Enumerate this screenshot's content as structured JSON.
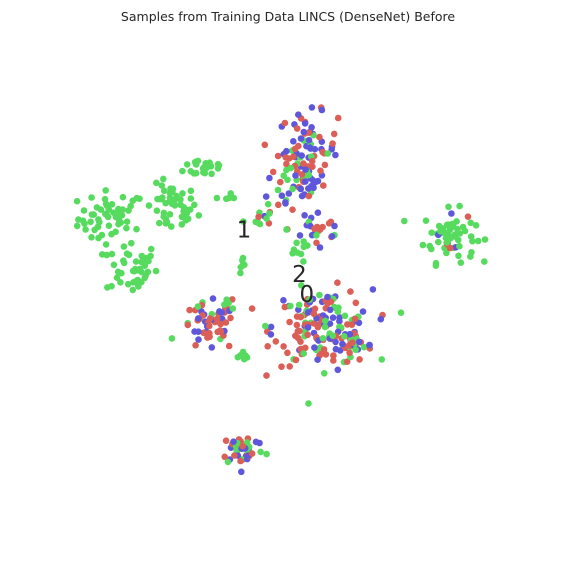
{
  "chart_data": {
    "type": "scatter",
    "title": "Samples from Training Data LINCS (DenseNet) Before",
    "xlabel": "",
    "ylabel": "",
    "xlim": [
      0,
      100
    ],
    "ylim": [
      0,
      100
    ],
    "axes_visible": false,
    "grid": false,
    "colors": {
      "0": "#db5f57",
      "1": "#57db5f",
      "2": "#5f57db"
    },
    "annotations": [
      {
        "text": "1",
        "x": 41.1,
        "y": 61.5
      },
      {
        "text": "2",
        "x": 52.3,
        "y": 52.5
      },
      {
        "text": "0",
        "x": 53.8,
        "y": 48.5
      }
    ],
    "clusters": [
      {
        "center": [
          14.5,
          64
        ],
        "spread": [
          3.4,
          2.8
        ],
        "counts": [
          0,
          55,
          0
        ]
      },
      {
        "center": [
          26.5,
          66
        ],
        "spread": [
          2.6,
          2.4
        ],
        "counts": [
          0,
          48,
          0
        ]
      },
      {
        "center": [
          18.5,
          54
        ],
        "spread": [
          2.6,
          2.6
        ],
        "counts": [
          0,
          40,
          0
        ]
      },
      {
        "center": [
          33.5,
          74.5
        ],
        "spread": [
          2.2,
          1.1
        ],
        "counts": [
          0,
          24,
          0
        ]
      },
      {
        "center": [
          82.5,
          60.5
        ],
        "spread": [
          2.6,
          2.6
        ],
        "counts": [
          4,
          60,
          3
        ]
      },
      {
        "center": [
          54,
          78
        ],
        "spread": [
          3.0,
          3.6
        ],
        "counts": [
          32,
          8,
          38
        ]
      },
      {
        "center": [
          51,
          70
        ],
        "spread": [
          3.4,
          2.6
        ],
        "counts": [
          10,
          14,
          14
        ]
      },
      {
        "center": [
          56,
          62
        ],
        "spread": [
          3.0,
          2.6
        ],
        "counts": [
          9,
          6,
          12
        ]
      },
      {
        "center": [
          52,
          57
        ],
        "spread": [
          1.2,
          1.0
        ],
        "counts": [
          0,
          8,
          0
        ]
      },
      {
        "center": [
          34,
          42
        ],
        "spread": [
          2.8,
          2.4
        ],
        "counts": [
          30,
          6,
          18
        ]
      },
      {
        "center": [
          57,
          42
        ],
        "spread": [
          5.0,
          3.8
        ],
        "counts": [
          70,
          48,
          46
        ]
      },
      {
        "center": [
          63,
          38.5
        ],
        "spread": [
          2.0,
          1.6
        ],
        "counts": [
          16,
          3,
          4
        ]
      },
      {
        "center": [
          41,
          17.5
        ],
        "spread": [
          2.2,
          1.6
        ],
        "counts": [
          14,
          12,
          16
        ]
      },
      {
        "center": [
          41,
          54.5
        ],
        "spread": [
          0.5,
          0.9
        ],
        "counts": [
          0,
          6,
          0
        ]
      },
      {
        "center": [
          41,
          36
        ],
        "spread": [
          0.6,
          0.6
        ],
        "counts": [
          0,
          8,
          0
        ]
      },
      {
        "center": [
          38,
          68
        ],
        "spread": [
          0.8,
          0.6
        ],
        "counts": [
          0,
          6,
          0
        ]
      },
      {
        "center": [
          44,
          64
        ],
        "spread": [
          1.4,
          1.0
        ],
        "counts": [
          2,
          6,
          1
        ]
      },
      {
        "center": [
          38,
          47
        ],
        "spread": [
          0.8,
          0.8
        ],
        "counts": [
          2,
          4,
          1
        ]
      }
    ]
  }
}
